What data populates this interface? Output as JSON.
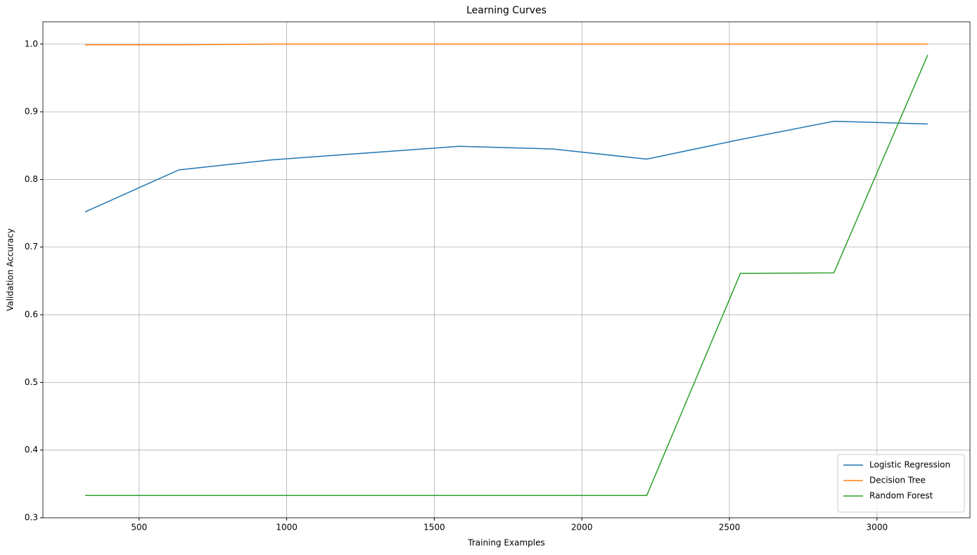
{
  "chart_data": {
    "type": "line",
    "title": "Learning Curves",
    "x_label": "Training Examples",
    "y_label": "Validation Accuracy",
    "x": [
      317,
      634,
      951,
      1268,
      1585,
      1903,
      2220,
      2537,
      2854,
      3172
    ],
    "series": [
      {
        "name": "Logistic Regression",
        "color": "#1f77b4",
        "values": [
          0.752,
          0.814,
          0.829,
          0.839,
          0.849,
          0.845,
          0.83,
          0.859,
          0.886,
          0.882
        ]
      },
      {
        "name": "Decision Tree",
        "color": "#ff7f0e",
        "values": [
          0.999,
          0.999,
          1.0,
          1.0,
          1.0,
          1.0,
          1.0,
          1.0,
          1.0,
          1.0
        ]
      },
      {
        "name": "Random Forest",
        "color": "#2ca02c",
        "values": [
          0.333,
          0.333,
          0.333,
          0.333,
          0.333,
          0.333,
          0.333,
          0.661,
          0.662,
          0.984
        ]
      }
    ],
    "xlim": [
      174,
      3315
    ],
    "ylim": [
      0.3,
      1.033
    ],
    "xticks": [
      500,
      1000,
      1500,
      2000,
      2500,
      3000
    ],
    "yticks": [
      0.3,
      0.4,
      0.5,
      0.6,
      0.7,
      0.8,
      0.9,
      {
        "value": 1.0,
        "label": "1.0"
      }
    ],
    "grid": true,
    "legend_position": "lower right"
  }
}
